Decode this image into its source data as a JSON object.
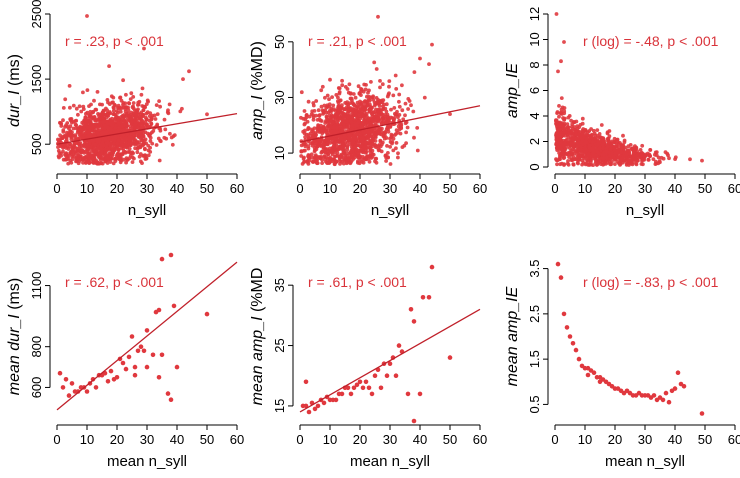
{
  "figure": {
    "colors": {
      "points": "#e0383e",
      "line": "#c0202a",
      "annotation": "#d9333a",
      "axis": "#000000"
    }
  },
  "chart_data": [
    {
      "id": "p1",
      "type": "scatter",
      "xlabel": "n_syll",
      "ylabel_parts": [
        {
          "t": "dur_I",
          "i": true
        },
        {
          "t": " (ms)",
          "i": false
        }
      ],
      "annotation": "r = .23, p < .001",
      "xlim": [
        0,
        60
      ],
      "ylim": [
        150,
        2500
      ],
      "xticks": [
        0,
        10,
        20,
        30,
        40,
        50,
        60
      ],
      "yticks": [
        500,
        1500,
        2500
      ],
      "trend": [
        [
          0,
          500
        ],
        [
          60,
          970
        ]
      ],
      "cloud": {
        "n": 1400,
        "x_mean": 17,
        "x_sd": 8,
        "x_max": 42,
        "y_at0": 500,
        "slope": 8,
        "y_sd": 230,
        "y_min": 200,
        "y_max": 1700,
        "seed": 11
      },
      "points": [
        [
          10,
          2470
        ],
        [
          29,
          1970
        ],
        [
          50,
          960
        ],
        [
          44,
          1620
        ],
        [
          42,
          1500
        ]
      ]
    },
    {
      "id": "p2",
      "type": "scatter",
      "xlabel": "n_syll",
      "ylabel_parts": [
        {
          "t": "amp_I",
          "i": true
        },
        {
          "t": " (%MD)",
          "i": false
        }
      ],
      "annotation": "r = .21, p < .001",
      "xlim": [
        0,
        60
      ],
      "ylim": [
        5,
        60
      ],
      "xticks": [
        0,
        10,
        20,
        30,
        40,
        50,
        60
      ],
      "yticks": [
        10,
        30,
        50
      ],
      "trend": [
        [
          0,
          14
        ],
        [
          60,
          27
        ]
      ],
      "cloud": {
        "n": 1400,
        "x_mean": 17,
        "x_sd": 8,
        "x_max": 42,
        "y_at0": 14,
        "slope": 0.22,
        "y_sd": 6.5,
        "y_min": 6,
        "y_max": 45,
        "seed": 23
      },
      "points": [
        [
          26,
          59
        ],
        [
          44,
          49
        ],
        [
          50,
          24
        ],
        [
          43,
          42
        ],
        [
          40,
          44
        ]
      ]
    },
    {
      "id": "p3",
      "type": "scatter",
      "xlabel": "n_syll",
      "ylabel_parts": [
        {
          "t": "amp_IE",
          "i": true
        }
      ],
      "annotation": "r (log) = -.48, p < .001",
      "xlim": [
        0,
        60
      ],
      "ylim": [
        0,
        12
      ],
      "xticks": [
        0,
        10,
        20,
        30,
        40,
        50,
        60
      ],
      "yticks": [
        0,
        2,
        4,
        6,
        8,
        10,
        12
      ],
      "cloud": {
        "n": 1100,
        "x_mean": 13,
        "x_sd": 9,
        "x_max": 42,
        "decay": true,
        "a": 2.2,
        "b": 0.06,
        "c": 0.45,
        "y_sd_frac": 0.45,
        "y_min": 0.15,
        "y_max": 9.5,
        "seed": 37
      },
      "points": [
        [
          0.5,
          12
        ],
        [
          3,
          9.8
        ],
        [
          1,
          7.5
        ],
        [
          2,
          8.3
        ],
        [
          49,
          0.5
        ],
        [
          45,
          0.6
        ]
      ]
    },
    {
      "id": "p4",
      "type": "scatter",
      "xlabel": "mean n_syll",
      "ylabel_parts": [
        {
          "t": "mean ",
          "i": true
        },
        {
          "t": "dur_I",
          "i": true
        },
        {
          "t": " (ms)",
          "i": false
        }
      ],
      "annotation": "r = .62, p < .001",
      "xlim": [
        0,
        60
      ],
      "ylim": [
        450,
        1250
      ],
      "xticks": [
        0,
        10,
        20,
        30,
        40,
        50,
        60
      ],
      "yticks": [
        600,
        800,
        1100
      ],
      "trend": [
        [
          0,
          490
        ],
        [
          60,
          1215
        ]
      ],
      "points": [
        [
          35,
          1230
        ],
        [
          38,
          1250
        ],
        [
          39,
          1000
        ],
        [
          34,
          980
        ],
        [
          40,
          700
        ],
        [
          37,
          570
        ],
        [
          33,
          970
        ],
        [
          30,
          880
        ],
        [
          25,
          850
        ],
        [
          28,
          800
        ],
        [
          29,
          780
        ],
        [
          27,
          780
        ],
        [
          32,
          760
        ],
        [
          35,
          760
        ],
        [
          24,
          750
        ],
        [
          21,
          740
        ],
        [
          22,
          720
        ],
        [
          23,
          690
        ],
        [
          26,
          700
        ],
        [
          30,
          700
        ],
        [
          18,
          680
        ],
        [
          16,
          670
        ],
        [
          14,
          660
        ],
        [
          12,
          640
        ],
        [
          15,
          660
        ],
        [
          20,
          650
        ],
        [
          26,
          660
        ],
        [
          34,
          650
        ],
        [
          8,
          600
        ],
        [
          10,
          580
        ],
        [
          5,
          620
        ],
        [
          3,
          640
        ],
        [
          1,
          670
        ],
        [
          2,
          600
        ],
        [
          4,
          560
        ],
        [
          6,
          580
        ],
        [
          7,
          580
        ],
        [
          9,
          600
        ],
        [
          11,
          620
        ],
        [
          13,
          600
        ],
        [
          17,
          630
        ],
        [
          19,
          640
        ],
        [
          38,
          540
        ],
        [
          50,
          960
        ]
      ]
    },
    {
      "id": "p5",
      "type": "scatter",
      "xlabel": "mean n_syll",
      "ylabel_parts": [
        {
          "t": "mean ",
          "i": true
        },
        {
          "t": "amp_I",
          "i": true
        },
        {
          "t": " (%MD",
          "i": false
        }
      ],
      "annotation": "r = .61, p < .001",
      "xlim": [
        0,
        60
      ],
      "ylim": [
        13,
        40
      ],
      "xticks": [
        0,
        10,
        20,
        30,
        40,
        50,
        60
      ],
      "yticks": [
        15,
        25,
        35
      ],
      "trend": [
        [
          0,
          14
        ],
        [
          60,
          31
        ]
      ],
      "points": [
        [
          44,
          38
        ],
        [
          41,
          33
        ],
        [
          43,
          33
        ],
        [
          37,
          31
        ],
        [
          38,
          29
        ],
        [
          33,
          25
        ],
        [
          34,
          24
        ],
        [
          31,
          23
        ],
        [
          28,
          22
        ],
        [
          30,
          22
        ],
        [
          26,
          21
        ],
        [
          29,
          20
        ],
        [
          32,
          20
        ],
        [
          25,
          20
        ],
        [
          22,
          19
        ],
        [
          20,
          19
        ],
        [
          23,
          18
        ],
        [
          27,
          18
        ],
        [
          18,
          18
        ],
        [
          15,
          18
        ],
        [
          17,
          17
        ],
        [
          14,
          17
        ],
        [
          12,
          16
        ],
        [
          11,
          16
        ],
        [
          10,
          16
        ],
        [
          8,
          15.5
        ],
        [
          6,
          15
        ],
        [
          7,
          16
        ],
        [
          5,
          14.5
        ],
        [
          3,
          14
        ],
        [
          2,
          15
        ],
        [
          1,
          15
        ],
        [
          4,
          15.5
        ],
        [
          9,
          16.5
        ],
        [
          13,
          17
        ],
        [
          16,
          18
        ],
        [
          19,
          18.5
        ],
        [
          21,
          18
        ],
        [
          24,
          17
        ],
        [
          36,
          17
        ],
        [
          40,
          17
        ],
        [
          38,
          12.5
        ],
        [
          50,
          23
        ],
        [
          2,
          19
        ]
      ]
    },
    {
      "id": "p6",
      "type": "scatter",
      "xlabel": "mean n_syll",
      "ylabel_parts": [
        {
          "t": "mean ",
          "i": true
        },
        {
          "t": "amp_IE",
          "i": true
        }
      ],
      "annotation": "r (log) = -.83, p < .001",
      "xlim": [
        0,
        60
      ],
      "ylim": [
        0.2,
        3.8
      ],
      "xticks": [
        0,
        10,
        20,
        30,
        40,
        50,
        60
      ],
      "yticks": [
        0.5,
        1.5,
        2.5,
        3.5
      ],
      "points": [
        [
          1,
          3.6
        ],
        [
          2,
          3.3
        ],
        [
          3,
          2.5
        ],
        [
          4,
          2.2
        ],
        [
          5,
          2.0
        ],
        [
          6,
          1.85
        ],
        [
          7,
          1.7
        ],
        [
          8,
          1.5
        ],
        [
          9,
          1.35
        ],
        [
          10,
          1.3
        ],
        [
          11,
          1.3
        ],
        [
          12,
          1.25
        ],
        [
          13,
          1.2
        ],
        [
          14,
          1.1
        ],
        [
          15,
          1.1
        ],
        [
          16,
          1.05
        ],
        [
          17,
          1.0
        ],
        [
          18,
          0.95
        ],
        [
          19,
          0.9
        ],
        [
          20,
          0.85
        ],
        [
          21,
          0.85
        ],
        [
          22,
          0.8
        ],
        [
          23,
          0.75
        ],
        [
          24,
          0.8
        ],
        [
          25,
          0.75
        ],
        [
          26,
          0.7
        ],
        [
          27,
          0.7
        ],
        [
          28,
          0.75
        ],
        [
          29,
          0.7
        ],
        [
          30,
          0.7
        ],
        [
          31,
          0.7
        ],
        [
          32,
          0.65
        ],
        [
          33,
          0.7
        ],
        [
          34,
          0.6
        ],
        [
          35,
          0.65
        ],
        [
          36,
          0.6
        ],
        [
          37,
          0.75
        ],
        [
          38,
          0.55
        ],
        [
          39,
          0.8
        ],
        [
          40,
          0.85
        ],
        [
          41,
          1.2
        ],
        [
          42,
          0.95
        ],
        [
          43,
          0.9
        ],
        [
          49,
          0.3
        ],
        [
          15,
          1.0
        ],
        [
          11,
          1.15
        ]
      ]
    }
  ]
}
